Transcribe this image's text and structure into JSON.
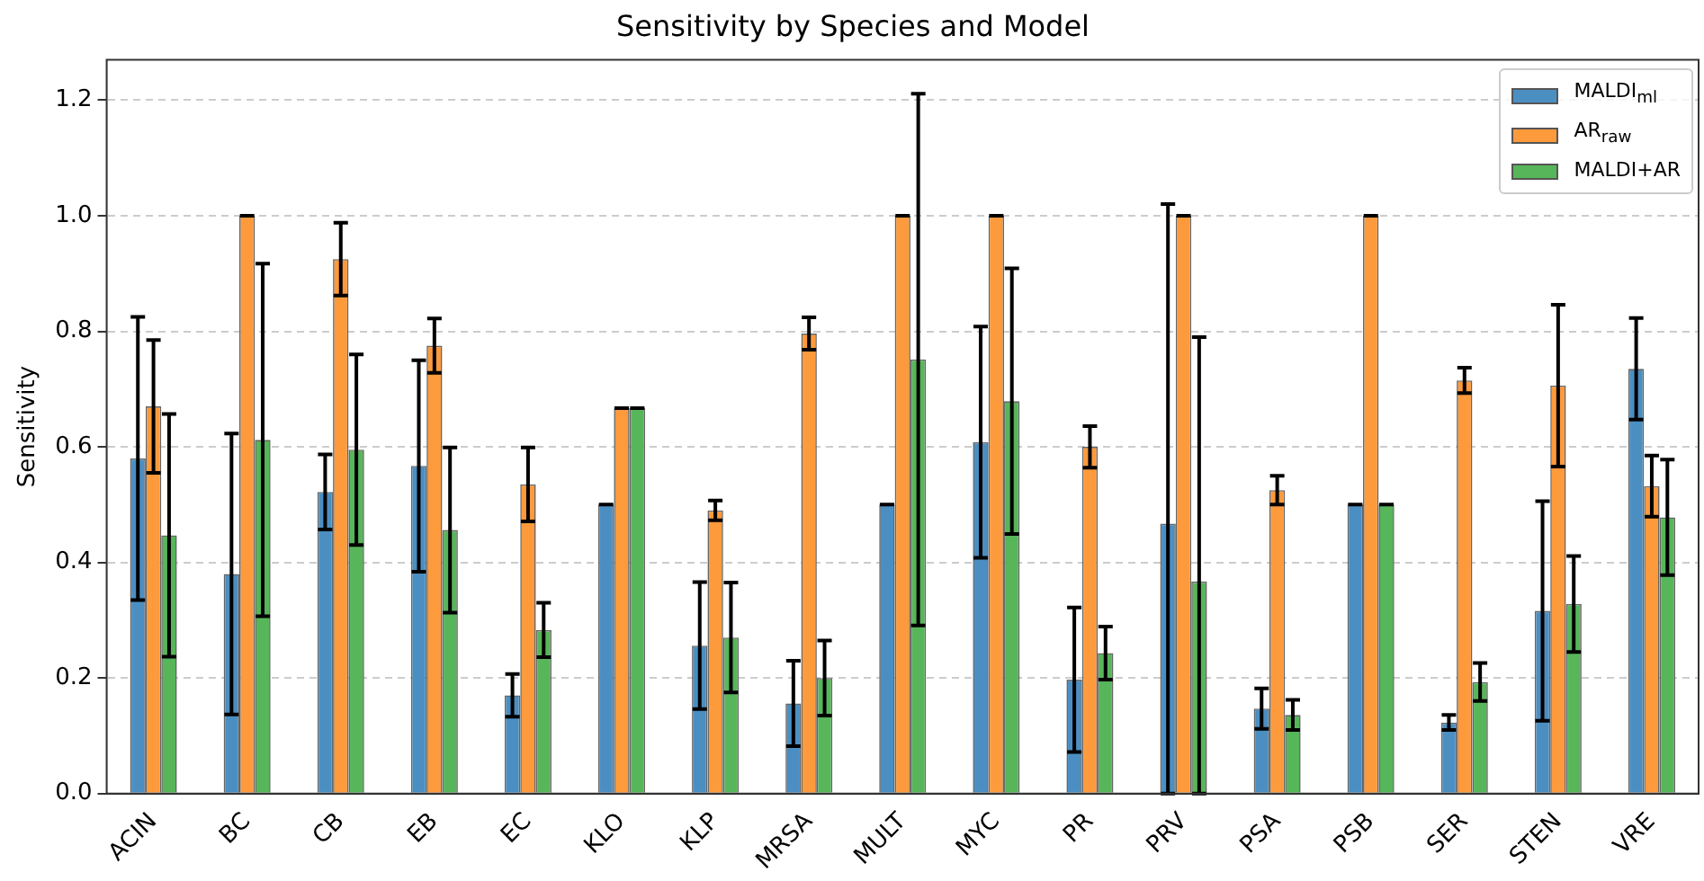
{
  "chart_data": {
    "type": "bar",
    "title": "Sensitivity by Species and Model",
    "ylabel": "Sensitivity",
    "categories": [
      "ACIN",
      "BC",
      "CB",
      "EB",
      "EC",
      "KLO",
      "KLP",
      "MRSA",
      "MULT",
      "MYC",
      "PR",
      "PRV",
      "PSA",
      "PSB",
      "SER",
      "STEN",
      "VRE"
    ],
    "series": [
      {
        "name": "MALDI$_{ml}$",
        "color": "#4b8fc2",
        "values": [
          0.58,
          0.38,
          0.522,
          0.567,
          0.17,
          0.5,
          0.256,
          0.156,
          0.5,
          0.608,
          0.197,
          0.467,
          0.147,
          0.5,
          0.123,
          0.316,
          0.735
        ],
        "errors": [
          0.245,
          0.243,
          0.065,
          0.183,
          0.037,
          0,
          0.11,
          0.074,
          0,
          0.2,
          0.125,
          [
            0,
            1.02
          ],
          0.035,
          0,
          0.013,
          0.19,
          0.088
        ]
      },
      {
        "name": "AR$_{raw}$",
        "color": "#fd9a3c",
        "values": [
          0.67,
          1.0,
          0.925,
          0.775,
          0.535,
          0.667,
          0.49,
          0.796,
          1.0,
          1.0,
          0.6,
          1.0,
          0.525,
          1.0,
          0.715,
          0.706,
          0.532
        ],
        "errors": [
          0.115,
          0,
          0.063,
          0.047,
          0.064,
          0,
          0.017,
          0.028,
          0,
          0,
          0.036,
          0,
          0.025,
          0,
          0.022,
          0.14,
          0.053
        ]
      },
      {
        "name": "MALDI+AR",
        "color": "#58b65a",
        "values": [
          0.447,
          0.612,
          0.595,
          0.456,
          0.283,
          0.667,
          0.27,
          0.2,
          0.751,
          0.679,
          0.243,
          0.367,
          0.136,
          0.5,
          0.193,
          0.328,
          0.478
        ],
        "errors": [
          0.21,
          0.305,
          0.165,
          0.143,
          0.047,
          0,
          0.095,
          0.065,
          0.46,
          0.23,
          0.046,
          [
            0,
            0.79
          ],
          0.026,
          0,
          0.033,
          0.083,
          0.1
        ]
      }
    ],
    "ylim": [
      0,
      1.27
    ],
    "yticks": [
      {
        "value": 0,
        "label": "0.0"
      },
      0.2,
      0.4,
      0.6,
      0.8,
      {
        "value": 1,
        "label": "1.0"
      },
      1.2
    ],
    "grid": "y",
    "legend": "top right"
  }
}
